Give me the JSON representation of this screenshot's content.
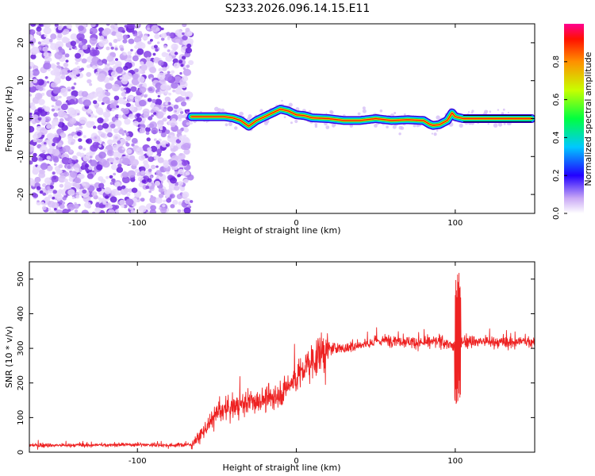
{
  "title": "S233.2026.096.14.15.E11",
  "chart_data": [
    {
      "type": "heatmap",
      "title": "S233.2026.096.14.15.E11",
      "xlabel": "Height of straight line (km)",
      "ylabel": "Frequency (Hz)",
      "xlim": [
        -168,
        150
      ],
      "ylim": [
        -25,
        25
      ],
      "xticks": [
        -100,
        0,
        100
      ],
      "yticks": [
        -20,
        -10,
        0,
        10,
        20
      ],
      "noise_region_x": [
        -168,
        -66
      ],
      "ridge": {
        "x": [
          -66,
          -55,
          -45,
          -40,
          -35,
          -30,
          -25,
          -20,
          -15,
          -10,
          -5,
          0,
          5,
          10,
          20,
          30,
          40,
          50,
          60,
          70,
          80,
          84,
          86,
          90,
          95,
          98,
          100,
          105,
          110,
          120,
          130,
          140,
          148
        ],
        "freq": [
          0.5,
          0.5,
          0.5,
          0.2,
          -0.5,
          -2.0,
          -0.5,
          0.5,
          1.5,
          2.5,
          2.0,
          1.0,
          0.8,
          0.2,
          0.0,
          -0.5,
          -0.5,
          0.0,
          -0.5,
          -0.3,
          -0.5,
          -1.5,
          -1.8,
          -1.6,
          -0.5,
          1.5,
          0.5,
          0.0,
          0.0,
          0.0,
          0.0,
          0.0,
          0.0
        ]
      },
      "colorbar": {
        "label": "Normalized spectral amplitude",
        "ticks": [
          "0.0",
          "0.2",
          "0.4",
          "0.6",
          "0.8"
        ],
        "range": [
          0,
          1
        ]
      }
    },
    {
      "type": "line",
      "xlabel": "Height of straight line (km)",
      "ylabel": "SNR (10 * v/v)",
      "xlim": [
        -168,
        150
      ],
      "ylim": [
        0,
        550
      ],
      "xticks": [
        -100,
        0,
        100
      ],
      "yticks": [
        0,
        100,
        200,
        300,
        400,
        500
      ],
      "series": [
        {
          "name": "SNR",
          "color": "#ee2222",
          "x": [
            -168,
            -140,
            -100,
            -80,
            -66,
            -60,
            -50,
            -40,
            -30,
            -20,
            -10,
            0,
            10,
            20,
            30,
            40,
            50,
            60,
            70,
            80,
            90,
            95,
            100,
            101,
            102,
            103,
            105,
            110,
            120,
            130,
            140,
            150
          ],
          "y": [
            20,
            20,
            22,
            20,
            22,
            50,
            110,
            130,
            145,
            150,
            170,
            215,
            265,
            300,
            300,
            310,
            320,
            325,
            320,
            315,
            320,
            315,
            300,
            550,
            130,
            330,
            320,
            320,
            320,
            315,
            320,
            320
          ]
        }
      ]
    }
  ]
}
